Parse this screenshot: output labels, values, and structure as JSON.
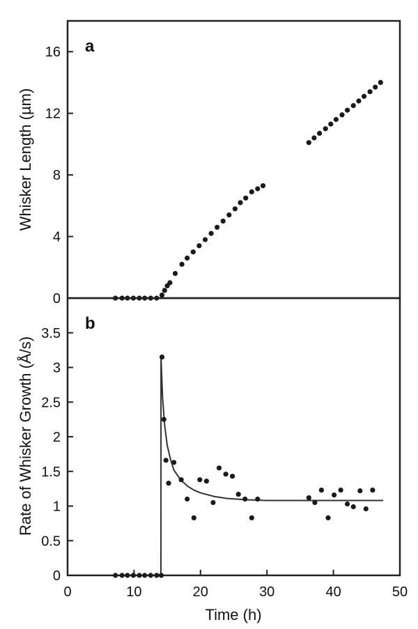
{
  "chart_data": [
    {
      "type": "scatter",
      "panel_label": "a",
      "ylabel": "Whisker Length (µm)",
      "xlabel": "",
      "xlim": [
        0,
        50
      ],
      "ylim": [
        0,
        18
      ],
      "yticks": [
        0,
        4,
        8,
        12,
        16
      ],
      "grid": false,
      "series": [
        {
          "points": [
            [
              7.2,
              0
            ],
            [
              8.2,
              0
            ],
            [
              9.0,
              0
            ],
            [
              9.9,
              0
            ],
            [
              10.8,
              0
            ],
            [
              11.6,
              0
            ],
            [
              12.5,
              0
            ],
            [
              13.4,
              0
            ],
            [
              14.2,
              0.2
            ],
            [
              14.6,
              0.5
            ],
            [
              15.0,
              0.8
            ],
            [
              15.4,
              1.0
            ],
            [
              16.2,
              1.6
            ],
            [
              17.2,
              2.2
            ],
            [
              18.0,
              2.6
            ],
            [
              18.9,
              3.0
            ],
            [
              19.8,
              3.4
            ],
            [
              20.7,
              3.8
            ],
            [
              21.6,
              4.2
            ],
            [
              22.5,
              4.6
            ],
            [
              23.4,
              5.0
            ],
            [
              24.3,
              5.4
            ],
            [
              25.2,
              5.8
            ],
            [
              26.0,
              6.2
            ],
            [
              26.8,
              6.5
            ],
            [
              27.7,
              6.9
            ],
            [
              28.6,
              7.1
            ],
            [
              29.4,
              7.3
            ],
            [
              36.3,
              10.1
            ],
            [
              37.1,
              10.4
            ],
            [
              37.9,
              10.7
            ],
            [
              38.8,
              11.0
            ],
            [
              39.6,
              11.3
            ],
            [
              40.4,
              11.6
            ],
            [
              41.3,
              11.9
            ],
            [
              42.1,
              12.2
            ],
            [
              43.0,
              12.5
            ],
            [
              43.8,
              12.8
            ],
            [
              44.6,
              13.1
            ],
            [
              45.5,
              13.4
            ],
            [
              46.3,
              13.7
            ],
            [
              47.1,
              14.0
            ]
          ]
        }
      ]
    },
    {
      "type": "scatter",
      "panel_label": "b",
      "ylabel": "Rate of Whisker Growth (Å/s)",
      "xlabel": "Time (h)",
      "xlim": [
        0,
        50
      ],
      "ylim": [
        0,
        4
      ],
      "xticks": [
        0,
        10,
        20,
        30,
        40,
        50
      ],
      "yticks": [
        0,
        0.5,
        1,
        1.5,
        2,
        2.5,
        3,
        3.5
      ],
      "ytick_labels": [
        "0",
        "0.5",
        "1",
        "1.5",
        "2",
        "2.5",
        "3",
        "3.5"
      ],
      "grid": false,
      "series": [
        {
          "points": [
            [
              7.2,
              0
            ],
            [
              8.2,
              0
            ],
            [
              9.0,
              0
            ],
            [
              9.9,
              0
            ],
            [
              10.8,
              0
            ],
            [
              11.6,
              0
            ],
            [
              12.5,
              0
            ],
            [
              13.4,
              0
            ],
            [
              14.1,
              0
            ],
            [
              14.2,
              3.15
            ],
            [
              14.5,
              2.25
            ],
            [
              14.8,
              1.66
            ],
            [
              15.2,
              1.33
            ],
            [
              16.0,
              1.63
            ],
            [
              17.1,
              1.38
            ],
            [
              18.0,
              1.1
            ],
            [
              19.0,
              0.83
            ],
            [
              19.9,
              1.38
            ],
            [
              20.9,
              1.36
            ],
            [
              21.9,
              1.05
            ],
            [
              22.8,
              1.55
            ],
            [
              23.8,
              1.46
            ],
            [
              24.8,
              1.43
            ],
            [
              25.7,
              1.17
            ],
            [
              26.7,
              1.1
            ],
            [
              27.7,
              0.83
            ],
            [
              28.6,
              1.1
            ],
            [
              36.3,
              1.12
            ],
            [
              37.2,
              1.05
            ],
            [
              38.2,
              1.23
            ],
            [
              39.2,
              0.83
            ],
            [
              40.1,
              1.16
            ],
            [
              41.1,
              1.23
            ],
            [
              42.1,
              1.03
            ],
            [
              43.0,
              0.99
            ],
            [
              44.0,
              1.22
            ],
            [
              44.9,
              0.96
            ],
            [
              45.9,
              1.23
            ]
          ]
        },
        {
          "line": "fit",
          "points": [
            [
              14.05,
              0
            ],
            [
              14.06,
              3.15
            ],
            [
              14.3,
              2.56
            ],
            [
              14.6,
              2.17
            ],
            [
              15.0,
              1.87
            ],
            [
              15.5,
              1.67
            ],
            [
              16.0,
              1.52
            ],
            [
              17.0,
              1.38
            ],
            [
              18.0,
              1.29
            ],
            [
              19.0,
              1.23
            ],
            [
              20.0,
              1.19
            ],
            [
              22.0,
              1.14
            ],
            [
              24.0,
              1.11
            ],
            [
              27.0,
              1.09
            ],
            [
              30.0,
              1.08
            ],
            [
              35.0,
              1.08
            ],
            [
              40.0,
              1.08
            ],
            [
              47.5,
              1.08
            ]
          ]
        }
      ]
    }
  ]
}
